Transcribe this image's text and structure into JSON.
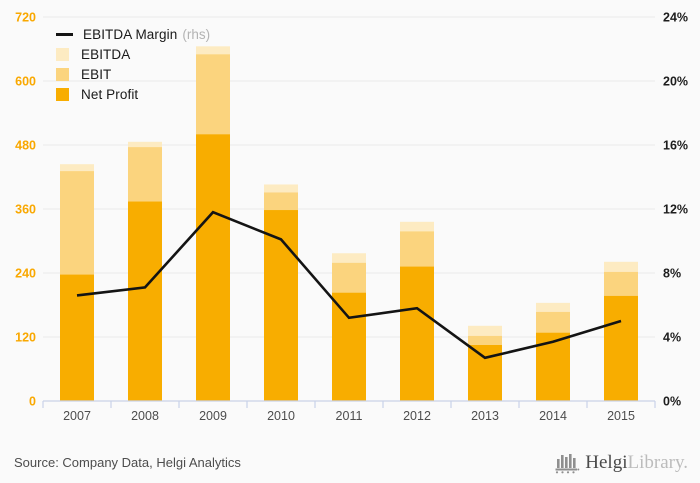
{
  "chart_data": {
    "type": "bar",
    "title": "",
    "categories": [
      "2007",
      "2008",
      "2009",
      "2010",
      "2011",
      "2012",
      "2013",
      "2014",
      "2015"
    ],
    "series": [
      {
        "name": "EBITDA",
        "color": "#FDEBC2",
        "values": [
          444,
          486,
          665,
          406,
          277,
          336,
          141,
          184,
          261
        ]
      },
      {
        "name": "EBIT",
        "color": "#FBD47E",
        "values": [
          431,
          476,
          650,
          391,
          259,
          318,
          122,
          167,
          242
        ]
      },
      {
        "name": "Net Profit",
        "color": "#F8AD00",
        "values": [
          237,
          374,
          500,
          358,
          203,
          252,
          105,
          128,
          197
        ]
      }
    ],
    "line": {
      "name": "EBITDA Margin",
      "axis_note": "(rhs)",
      "color": "#141414",
      "axis": "right",
      "values": [
        6.6,
        7.1,
        11.8,
        10.1,
        5.2,
        5.8,
        2.7,
        3.7,
        5.0
      ]
    },
    "left_axis": {
      "min": 0,
      "max": 720,
      "step": 120,
      "label_color": "#F9A800"
    },
    "right_axis": {
      "min": 0,
      "max": 24,
      "step": 4,
      "unit": "%",
      "label_color": "#1d1d1d"
    },
    "grid": true,
    "grid_color": "#E9E9E9",
    "axis_line_color": "#C9D2E8",
    "category_label_color": "#4d4d4d",
    "legend_position": "top-left",
    "bar_overlay": true
  },
  "footer": {
    "source": "Source: Company Data, Helgi Analytics",
    "logo": {
      "icon": "bar-chart-logo-icon",
      "text_primary": "Helgi",
      "text_secondary": "Library."
    }
  }
}
